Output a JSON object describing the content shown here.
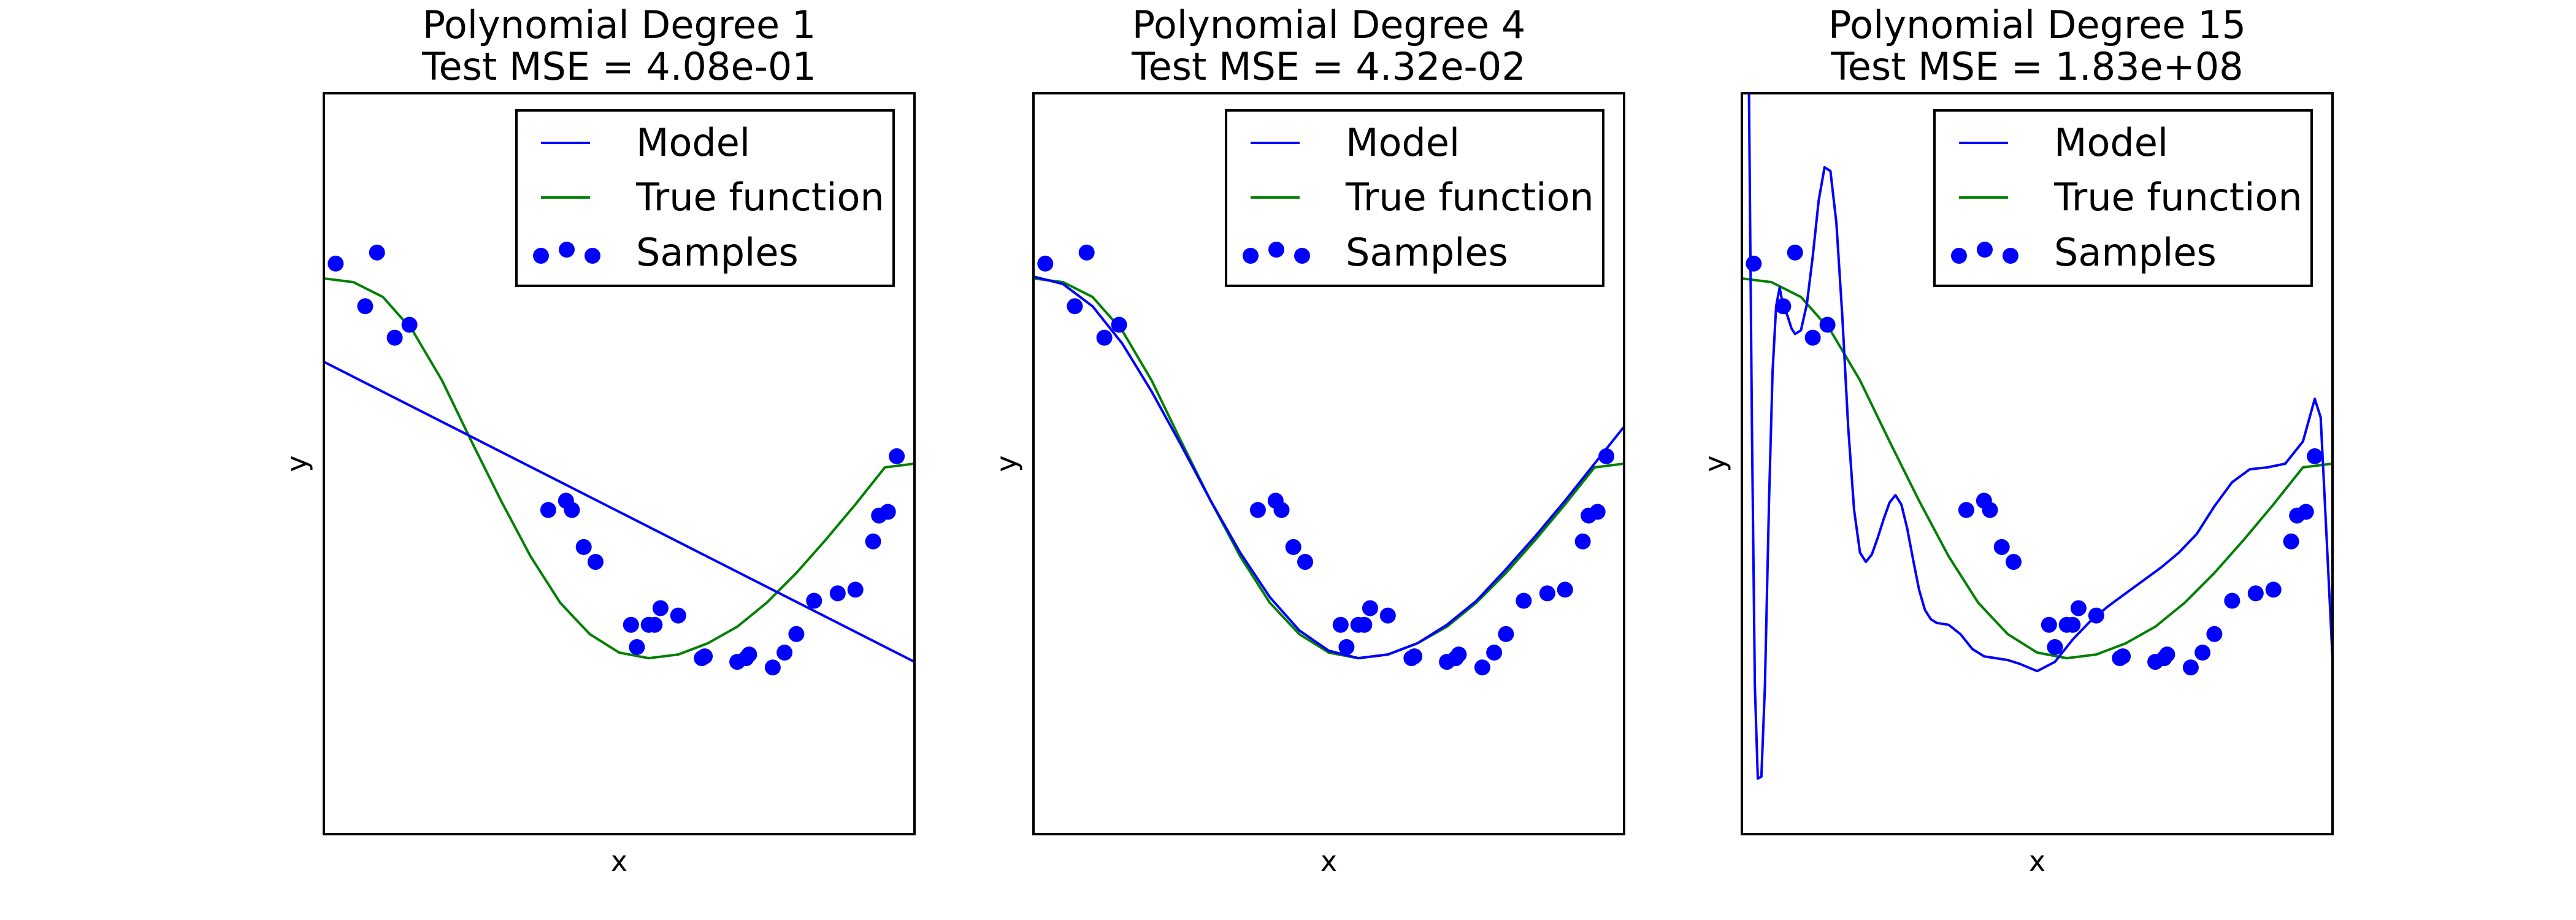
{
  "colors": {
    "model": "#0000ff",
    "true_function": "#008000",
    "samples": "#0000ff",
    "axes": "#000000",
    "background": "#ffffff"
  },
  "legend": {
    "model": "Model",
    "true_function": "True function",
    "samples": "Samples"
  },
  "chart_data": [
    {
      "type": "line",
      "title_line1": "Polynomial Degree 1",
      "title_line2": "Test MSE = 4.08e-01",
      "xlabel": "x",
      "ylabel": "y",
      "xlim": [
        0,
        1
      ],
      "ylim": [
        -2,
        2
      ],
      "ticks": "none",
      "grid": false,
      "legend_position": "top-right",
      "model_x": [
        0,
        1
      ],
      "model_y": [
        0.55,
        -1.07
      ]
    },
    {
      "type": "line",
      "title_line1": "Polynomial Degree 4",
      "title_line2": "Test MSE = 4.32e-02",
      "xlabel": "x",
      "ylabel": "y",
      "xlim": [
        0,
        1
      ],
      "ylim": [
        -2,
        2
      ],
      "ticks": "none",
      "grid": false,
      "legend_position": "top-right",
      "model_x": [
        0,
        0.05,
        0.1,
        0.15,
        0.2,
        0.25,
        0.3,
        0.35,
        0.4,
        0.45,
        0.5,
        0.55,
        0.6,
        0.65,
        0.7,
        0.75,
        0.8,
        0.85,
        0.9,
        0.95,
        1.0
      ],
      "model_y": [
        1.01,
        0.97,
        0.85,
        0.65,
        0.39,
        0.1,
        -0.2,
        -0.48,
        -0.72,
        -0.9,
        -1.01,
        -1.05,
        -1.03,
        -0.97,
        -0.87,
        -0.74,
        -0.57,
        -0.39,
        -0.2,
        0.0,
        0.2
      ]
    },
    {
      "type": "line",
      "title_line1": "Polynomial Degree 15",
      "title_line2": "Test MSE = 1.83e+08",
      "xlabel": "x",
      "ylabel": "y",
      "xlim": [
        0,
        1
      ],
      "ylim": [
        -2,
        2
      ],
      "ticks": "none",
      "grid": false,
      "legend_position": "top-right",
      "model_x": [
        0.012,
        0.017,
        0.022,
        0.027,
        0.033,
        0.039,
        0.046,
        0.052,
        0.058,
        0.064,
        0.07,
        0.077,
        0.084,
        0.09,
        0.1,
        0.11,
        0.12,
        0.13,
        0.14,
        0.15,
        0.16,
        0.17,
        0.18,
        0.19,
        0.2,
        0.21,
        0.22,
        0.23,
        0.24,
        0.25,
        0.26,
        0.27,
        0.28,
        0.29,
        0.3,
        0.31,
        0.32,
        0.33,
        0.35,
        0.37,
        0.39,
        0.41,
        0.43,
        0.45,
        0.47,
        0.5,
        0.53,
        0.56,
        0.59,
        0.62,
        0.65,
        0.68,
        0.71,
        0.74,
        0.77,
        0.8,
        0.83,
        0.86,
        0.89,
        0.92,
        0.95,
        0.97,
        0.98,
        0.99,
        1.0
      ],
      "model_y": [
        2.0,
        0.2,
        -1.2,
        -1.7,
        -1.69,
        -1.2,
        -0.2,
        0.5,
        0.85,
        0.95,
        0.85,
        0.8,
        0.73,
        0.7,
        0.72,
        0.86,
        1.12,
        1.42,
        1.6,
        1.58,
        1.3,
        0.8,
        0.2,
        -0.25,
        -0.48,
        -0.53,
        -0.49,
        -0.4,
        -0.3,
        -0.21,
        -0.17,
        -0.22,
        -0.35,
        -0.52,
        -0.68,
        -0.79,
        -0.84,
        -0.86,
        -0.87,
        -0.92,
        -1.0,
        -1.04,
        -1.05,
        -1.06,
        -1.08,
        -1.12,
        -1.07,
        -0.95,
        -0.85,
        -0.77,
        -0.7,
        -0.63,
        -0.56,
        -0.48,
        -0.38,
        -0.23,
        -0.1,
        -0.03,
        -0.02,
        0.0,
        0.12,
        0.35,
        0.25,
        -0.4,
        -1.05
      ]
    }
  ],
  "true_function": {
    "x": [
      0,
      0.05,
      0.1,
      0.15,
      0.2,
      0.25,
      0.3,
      0.35,
      0.4,
      0.45,
      0.5,
      0.55,
      0.6,
      0.65,
      0.7,
      0.75,
      0.8,
      0.85,
      0.9,
      0.95,
      1.0
    ],
    "y": [
      1.0,
      0.98,
      0.9,
      0.72,
      0.45,
      0.12,
      -0.2,
      -0.5,
      -0.75,
      -0.92,
      -1.02,
      -1.05,
      -1.03,
      -0.97,
      -0.88,
      -0.75,
      -0.59,
      -0.41,
      -0.22,
      -0.02,
      0.0
    ]
  },
  "samples": {
    "x": [
      0.02,
      0.07,
      0.09,
      0.12,
      0.145,
      0.38,
      0.41,
      0.42,
      0.44,
      0.46,
      0.52,
      0.53,
      0.55,
      0.56,
      0.57,
      0.6,
      0.64,
      0.645,
      0.7,
      0.715,
      0.72,
      0.76,
      0.78,
      0.8,
      0.83,
      0.87,
      0.9,
      0.93,
      0.94,
      0.955,
      0.97
    ],
    "y": [
      1.08,
      0.85,
      1.14,
      0.68,
      0.75,
      -0.25,
      -0.2,
      -0.25,
      -0.45,
      -0.53,
      -0.87,
      -0.99,
      -0.87,
      -0.87,
      -0.78,
      -0.82,
      -1.05,
      -1.04,
      -1.07,
      -1.05,
      -1.03,
      -1.1,
      -1.02,
      -0.92,
      -0.74,
      -0.7,
      -0.68,
      -0.42,
      -0.28,
      -0.26,
      0.04
    ]
  }
}
